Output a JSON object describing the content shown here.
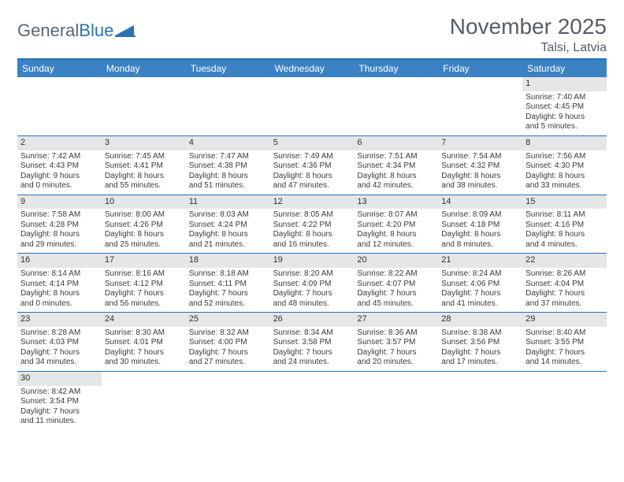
{
  "brand": {
    "part1": "General",
    "part2": "Blue"
  },
  "title": "November 2025",
  "location": "Talsi, Latvia",
  "colors": {
    "header_bg": "#3b82c4",
    "divider": "#2a72b5",
    "daynum_bg": "#e4e6e8",
    "text": "#333333",
    "title_text": "#555d66"
  },
  "weekdays": [
    "Sunday",
    "Monday",
    "Tuesday",
    "Wednesday",
    "Thursday",
    "Friday",
    "Saturday"
  ],
  "weeks": [
    [
      null,
      null,
      null,
      null,
      null,
      null,
      {
        "n": "1",
        "sr": "Sunrise: 7:40 AM",
        "ss": "Sunset: 4:45 PM",
        "d1": "Daylight: 9 hours",
        "d2": "and 5 minutes."
      }
    ],
    [
      {
        "n": "2",
        "sr": "Sunrise: 7:42 AM",
        "ss": "Sunset: 4:43 PM",
        "d1": "Daylight: 9 hours",
        "d2": "and 0 minutes."
      },
      {
        "n": "3",
        "sr": "Sunrise: 7:45 AM",
        "ss": "Sunset: 4:41 PM",
        "d1": "Daylight: 8 hours",
        "d2": "and 55 minutes."
      },
      {
        "n": "4",
        "sr": "Sunrise: 7:47 AM",
        "ss": "Sunset: 4:38 PM",
        "d1": "Daylight: 8 hours",
        "d2": "and 51 minutes."
      },
      {
        "n": "5",
        "sr": "Sunrise: 7:49 AM",
        "ss": "Sunset: 4:36 PM",
        "d1": "Daylight: 8 hours",
        "d2": "and 47 minutes."
      },
      {
        "n": "6",
        "sr": "Sunrise: 7:51 AM",
        "ss": "Sunset: 4:34 PM",
        "d1": "Daylight: 8 hours",
        "d2": "and 42 minutes."
      },
      {
        "n": "7",
        "sr": "Sunrise: 7:54 AM",
        "ss": "Sunset: 4:32 PM",
        "d1": "Daylight: 8 hours",
        "d2": "and 38 minutes."
      },
      {
        "n": "8",
        "sr": "Sunrise: 7:56 AM",
        "ss": "Sunset: 4:30 PM",
        "d1": "Daylight: 8 hours",
        "d2": "and 33 minutes."
      }
    ],
    [
      {
        "n": "9",
        "sr": "Sunrise: 7:58 AM",
        "ss": "Sunset: 4:28 PM",
        "d1": "Daylight: 8 hours",
        "d2": "and 29 minutes."
      },
      {
        "n": "10",
        "sr": "Sunrise: 8:00 AM",
        "ss": "Sunset: 4:26 PM",
        "d1": "Daylight: 8 hours",
        "d2": "and 25 minutes."
      },
      {
        "n": "11",
        "sr": "Sunrise: 8:03 AM",
        "ss": "Sunset: 4:24 PM",
        "d1": "Daylight: 8 hours",
        "d2": "and 21 minutes."
      },
      {
        "n": "12",
        "sr": "Sunrise: 8:05 AM",
        "ss": "Sunset: 4:22 PM",
        "d1": "Daylight: 8 hours",
        "d2": "and 16 minutes."
      },
      {
        "n": "13",
        "sr": "Sunrise: 8:07 AM",
        "ss": "Sunset: 4:20 PM",
        "d1": "Daylight: 8 hours",
        "d2": "and 12 minutes."
      },
      {
        "n": "14",
        "sr": "Sunrise: 8:09 AM",
        "ss": "Sunset: 4:18 PM",
        "d1": "Daylight: 8 hours",
        "d2": "and 8 minutes."
      },
      {
        "n": "15",
        "sr": "Sunrise: 8:11 AM",
        "ss": "Sunset: 4:16 PM",
        "d1": "Daylight: 8 hours",
        "d2": "and 4 minutes."
      }
    ],
    [
      {
        "n": "16",
        "sr": "Sunrise: 8:14 AM",
        "ss": "Sunset: 4:14 PM",
        "d1": "Daylight: 8 hours",
        "d2": "and 0 minutes."
      },
      {
        "n": "17",
        "sr": "Sunrise: 8:16 AM",
        "ss": "Sunset: 4:12 PM",
        "d1": "Daylight: 7 hours",
        "d2": "and 56 minutes."
      },
      {
        "n": "18",
        "sr": "Sunrise: 8:18 AM",
        "ss": "Sunset: 4:11 PM",
        "d1": "Daylight: 7 hours",
        "d2": "and 52 minutes."
      },
      {
        "n": "19",
        "sr": "Sunrise: 8:20 AM",
        "ss": "Sunset: 4:09 PM",
        "d1": "Daylight: 7 hours",
        "d2": "and 48 minutes."
      },
      {
        "n": "20",
        "sr": "Sunrise: 8:22 AM",
        "ss": "Sunset: 4:07 PM",
        "d1": "Daylight: 7 hours",
        "d2": "and 45 minutes."
      },
      {
        "n": "21",
        "sr": "Sunrise: 8:24 AM",
        "ss": "Sunset: 4:06 PM",
        "d1": "Daylight: 7 hours",
        "d2": "and 41 minutes."
      },
      {
        "n": "22",
        "sr": "Sunrise: 8:26 AM",
        "ss": "Sunset: 4:04 PM",
        "d1": "Daylight: 7 hours",
        "d2": "and 37 minutes."
      }
    ],
    [
      {
        "n": "23",
        "sr": "Sunrise: 8:28 AM",
        "ss": "Sunset: 4:03 PM",
        "d1": "Daylight: 7 hours",
        "d2": "and 34 minutes."
      },
      {
        "n": "24",
        "sr": "Sunrise: 8:30 AM",
        "ss": "Sunset: 4:01 PM",
        "d1": "Daylight: 7 hours",
        "d2": "and 30 minutes."
      },
      {
        "n": "25",
        "sr": "Sunrise: 8:32 AM",
        "ss": "Sunset: 4:00 PM",
        "d1": "Daylight: 7 hours",
        "d2": "and 27 minutes."
      },
      {
        "n": "26",
        "sr": "Sunrise: 8:34 AM",
        "ss": "Sunset: 3:58 PM",
        "d1": "Daylight: 7 hours",
        "d2": "and 24 minutes."
      },
      {
        "n": "27",
        "sr": "Sunrise: 8:36 AM",
        "ss": "Sunset: 3:57 PM",
        "d1": "Daylight: 7 hours",
        "d2": "and 20 minutes."
      },
      {
        "n": "28",
        "sr": "Sunrise: 8:38 AM",
        "ss": "Sunset: 3:56 PM",
        "d1": "Daylight: 7 hours",
        "d2": "and 17 minutes."
      },
      {
        "n": "29",
        "sr": "Sunrise: 8:40 AM",
        "ss": "Sunset: 3:55 PM",
        "d1": "Daylight: 7 hours",
        "d2": "and 14 minutes."
      }
    ],
    [
      {
        "n": "30",
        "sr": "Sunrise: 8:42 AM",
        "ss": "Sunset: 3:54 PM",
        "d1": "Daylight: 7 hours",
        "d2": "and 11 minutes."
      },
      null,
      null,
      null,
      null,
      null,
      null
    ]
  ]
}
